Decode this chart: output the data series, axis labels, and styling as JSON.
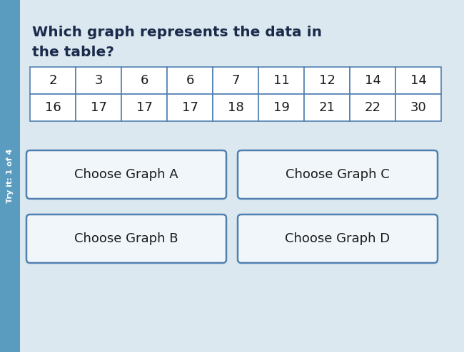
{
  "title_line1": "Which graph represents the data in",
  "title_line2": "the table?",
  "row1": [
    2,
    3,
    6,
    6,
    7,
    11,
    12,
    14,
    14
  ],
  "row2": [
    16,
    17,
    17,
    17,
    18,
    19,
    21,
    22,
    30
  ],
  "buttons": [
    "Choose Graph A",
    "Choose Graph C",
    "Choose Graph B",
    "Choose Graph D"
  ],
  "background_color": "#dce8f0",
  "sidebar_color": "#5a9bc0",
  "sidebar_text": "Try it: 1 of 4",
  "table_border_color": "#5080b0",
  "button_border_color": "#5080b0",
  "button_bg_color": "#f0f6fa",
  "title_color": "#1a2a4a",
  "text_color": "#1a1a1a",
  "title_fontsize": 14.5,
  "table_fontsize": 13,
  "button_fontsize": 13,
  "sidebar_fontsize": 8
}
